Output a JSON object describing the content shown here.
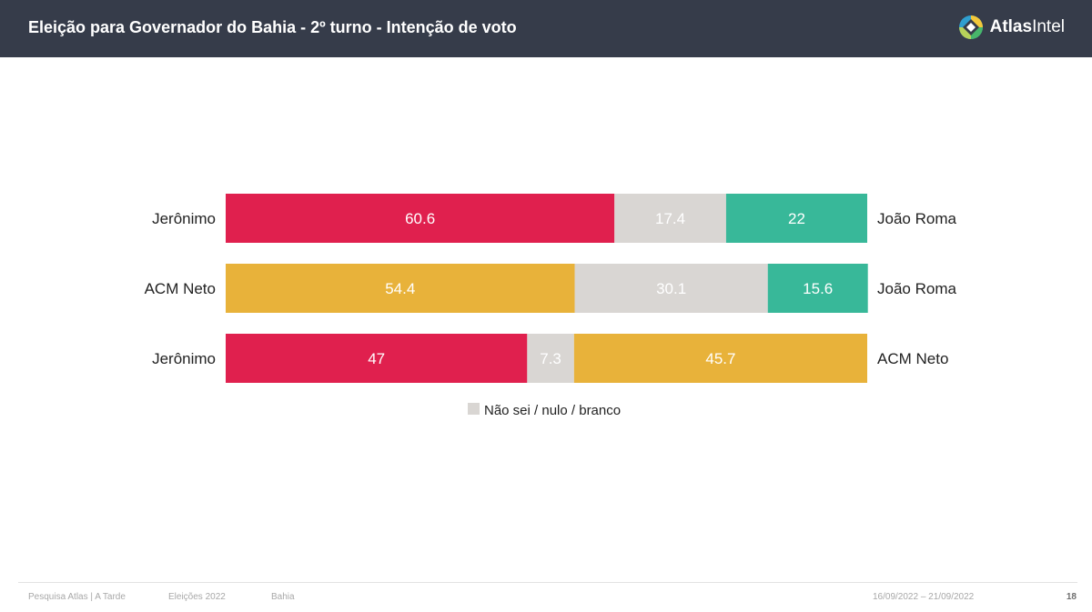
{
  "header": {
    "title": "Eleição para Governador do Bahia - 2º turno - Intenção de voto",
    "brand": {
      "name_part1": "Atlas",
      "name_part2": "Intel"
    }
  },
  "colors": {
    "jeronimo": "#e0204e",
    "acm_neto": "#e8b23a",
    "joao_roma": "#38b899",
    "undecided": "#d9d6d3",
    "header_bg": "#363c4a"
  },
  "chart_data": {
    "type": "bar",
    "orientation": "horizontal-stacked",
    "xlim": [
      0,
      100
    ],
    "rows": [
      {
        "left_label": "Jerônimo",
        "right_label": "João Roma",
        "segments": [
          {
            "name": "Jerônimo",
            "value": 60.6,
            "color_key": "jeronimo",
            "label": "60.6"
          },
          {
            "name": "Não sei / nulo / branco",
            "value": 17.4,
            "color_key": "undecided",
            "label": "17.4"
          },
          {
            "name": "João Roma",
            "value": 22,
            "color_key": "joao_roma",
            "label": "22"
          }
        ]
      },
      {
        "left_label": "ACM Neto",
        "right_label": "João Roma",
        "segments": [
          {
            "name": "ACM Neto",
            "value": 54.4,
            "color_key": "acm_neto",
            "label": "54.4"
          },
          {
            "name": "Não sei / nulo / branco",
            "value": 30.1,
            "color_key": "undecided",
            "label": "30.1"
          },
          {
            "name": "João Roma",
            "value": 15.6,
            "color_key": "joao_roma",
            "label": "15.6"
          }
        ]
      },
      {
        "left_label": "Jerônimo",
        "right_label": "ACM Neto",
        "segments": [
          {
            "name": "Jerônimo",
            "value": 47,
            "color_key": "jeronimo",
            "label": "47"
          },
          {
            "name": "Não sei / nulo / branco",
            "value": 7.3,
            "color_key": "undecided",
            "label": "7.3"
          },
          {
            "name": "ACM Neto",
            "value": 45.7,
            "color_key": "acm_neto",
            "label": "45.7"
          }
        ]
      }
    ],
    "legend": [
      {
        "label": "Não sei / nulo / branco",
        "color_key": "undecided"
      }
    ]
  },
  "footer": {
    "source": "Pesquisa Atlas | A Tarde",
    "election": "Eleições 2022",
    "region": "Bahia",
    "dates": "16/09/2022 – 21/09/2022",
    "page": "18"
  }
}
